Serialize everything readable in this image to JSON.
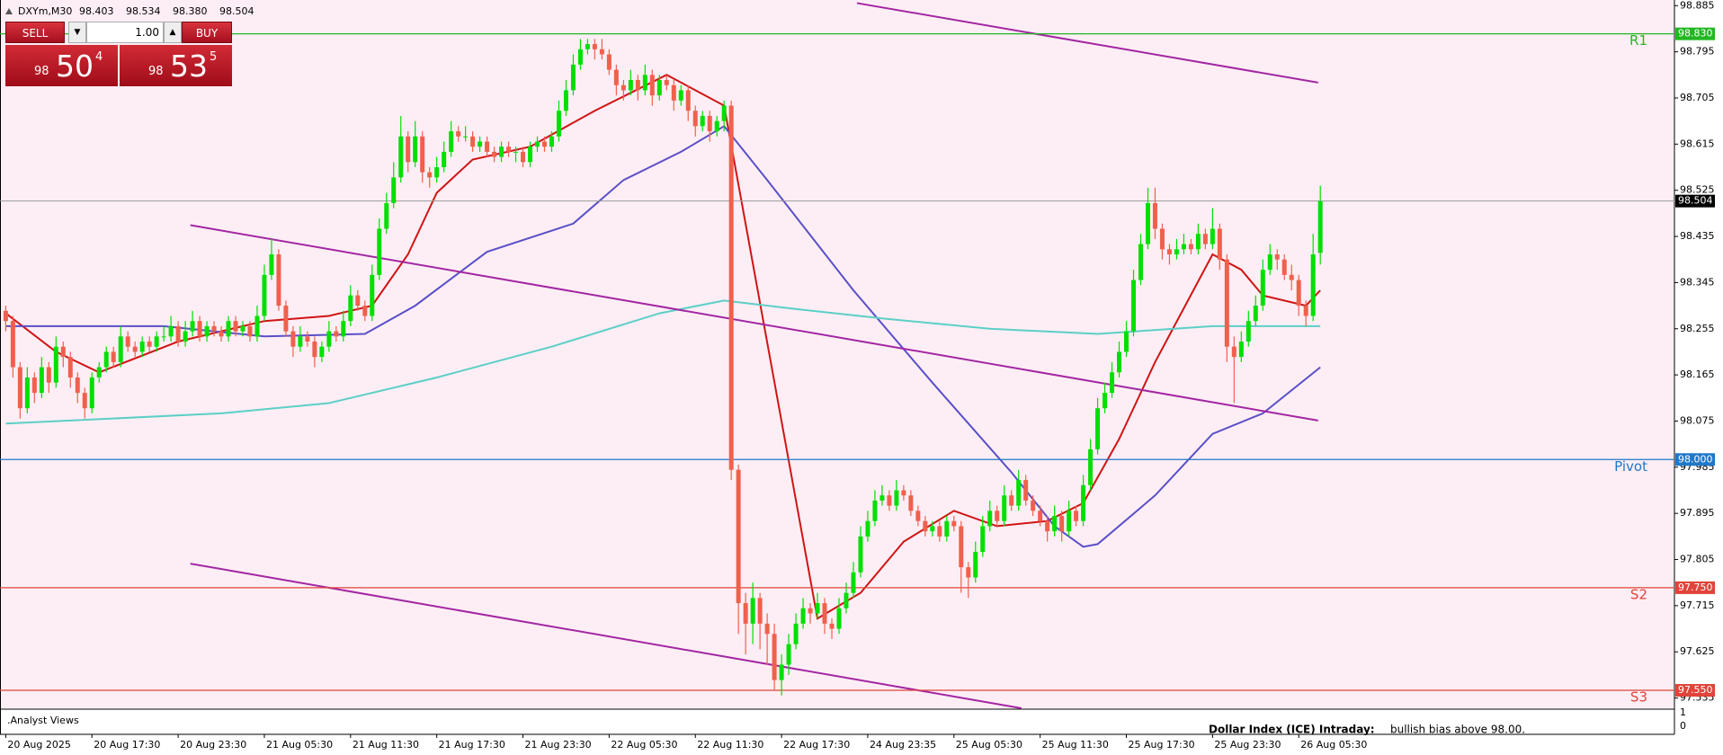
{
  "chart_data": {
    "type": "candlestick",
    "symbol": "DXYm,M30",
    "header_values": [
      "98.403",
      "98.534",
      "98.380",
      "98.504"
    ],
    "colors": {
      "up": "#00e000",
      "down": "#f0604d",
      "background": "#fdeef5",
      "current": "#9a9a9a",
      "current_badge": "#000000"
    },
    "xlim": [
      -0.8,
      232.3
    ],
    "xticks": [
      {
        "value": 0,
        "label": "20 Aug 2025"
      },
      {
        "value": 12,
        "label": "20 Aug 17:30"
      },
      {
        "value": 24,
        "label": "20 Aug 23:30"
      },
      {
        "value": 36,
        "label": "21 Aug 05:30"
      },
      {
        "value": 48,
        "label": "21 Aug 11:30"
      },
      {
        "value": 60,
        "label": "21 Aug 17:30"
      },
      {
        "value": 72,
        "label": "21 Aug 23:30"
      },
      {
        "value": 84,
        "label": "22 Aug 05:30"
      },
      {
        "value": 96,
        "label": "22 Aug 11:30"
      },
      {
        "value": 108,
        "label": "22 Aug 17:30"
      },
      {
        "value": 120,
        "label": "24 Aug 23:35"
      },
      {
        "value": 132,
        "label": "25 Aug 05:30"
      },
      {
        "value": 144,
        "label": "25 Aug 11:30"
      },
      {
        "value": 156,
        "label": "25 Aug 17:30"
      },
      {
        "value": 168,
        "label": "25 Aug 23:30"
      },
      {
        "value": 180,
        "label": "26 Aug 05:30"
      }
    ],
    "ylim": [
      97.515,
      98.896
    ],
    "yticks": [
      98.885,
      98.795,
      98.705,
      98.615,
      98.525,
      98.435,
      98.345,
      98.255,
      98.165,
      98.075,
      97.985,
      97.895,
      97.805,
      97.715,
      97.625,
      97.535
    ],
    "ohlc": [
      [
        98.29,
        98.3,
        98.25,
        98.27
      ],
      [
        98.27,
        98.28,
        98.16,
        98.18
      ],
      [
        98.18,
        98.19,
        98.08,
        98.1
      ],
      [
        98.1,
        98.18,
        98.09,
        98.16
      ],
      [
        98.16,
        98.17,
        98.11,
        98.13
      ],
      [
        98.13,
        98.2,
        98.12,
        98.18
      ],
      [
        98.18,
        98.19,
        98.13,
        98.15
      ],
      [
        98.15,
        98.24,
        98.14,
        98.22
      ],
      [
        98.22,
        98.23,
        98.18,
        98.2
      ],
      [
        98.2,
        98.21,
        98.14,
        98.16
      ],
      [
        98.16,
        98.17,
        98.11,
        98.13
      ],
      [
        98.13,
        98.14,
        98.08,
        98.1
      ],
      [
        98.1,
        98.17,
        98.09,
        98.16
      ],
      [
        98.16,
        98.19,
        98.15,
        98.18
      ],
      [
        98.18,
        98.22,
        98.17,
        98.21
      ],
      [
        98.21,
        98.22,
        98.18,
        98.19
      ],
      [
        98.19,
        98.26,
        98.18,
        98.24
      ],
      [
        98.24,
        98.25,
        98.21,
        98.22
      ],
      [
        98.22,
        98.23,
        98.2,
        98.21
      ],
      [
        98.21,
        98.24,
        98.2,
        98.23
      ],
      [
        98.23,
        98.24,
        98.21,
        98.22
      ],
      [
        98.22,
        98.25,
        98.21,
        98.24
      ],
      [
        98.24,
        98.26,
        98.23,
        98.24
      ],
      [
        98.24,
        98.28,
        98.23,
        98.26
      ],
      [
        98.26,
        98.27,
        98.22,
        98.23
      ],
      [
        98.23,
        98.27,
        98.22,
        98.25
      ],
      [
        98.25,
        98.29,
        98.24,
        98.27
      ],
      [
        98.27,
        98.28,
        98.23,
        98.24
      ],
      [
        98.24,
        98.27,
        98.23,
        98.26
      ],
      [
        98.26,
        98.27,
        98.24,
        98.25
      ],
      [
        98.25,
        98.26,
        98.23,
        98.24
      ],
      [
        98.24,
        98.28,
        98.23,
        98.27
      ],
      [
        98.27,
        98.28,
        98.24,
        98.25
      ],
      [
        98.25,
        98.27,
        98.24,
        98.26
      ],
      [
        98.26,
        98.27,
        98.23,
        98.24
      ],
      [
        98.24,
        98.3,
        98.23,
        98.28
      ],
      [
        98.28,
        98.38,
        98.27,
        98.36
      ],
      [
        98.36,
        98.43,
        98.35,
        98.4
      ],
      [
        98.4,
        98.41,
        98.29,
        98.3
      ],
      [
        98.3,
        98.31,
        98.24,
        98.25
      ],
      [
        98.25,
        98.26,
        98.2,
        98.22
      ],
      [
        98.22,
        98.26,
        98.21,
        98.24
      ],
      [
        98.24,
        98.25,
        98.22,
        98.23
      ],
      [
        98.23,
        98.24,
        98.18,
        98.2
      ],
      [
        98.2,
        98.23,
        98.19,
        98.22
      ],
      [
        98.22,
        98.27,
        98.21,
        98.25
      ],
      [
        98.25,
        98.26,
        98.23,
        98.24
      ],
      [
        98.24,
        98.29,
        98.23,
        98.27
      ],
      [
        98.27,
        98.34,
        98.26,
        98.32
      ],
      [
        98.32,
        98.33,
        98.29,
        98.3
      ],
      [
        98.3,
        98.31,
        98.27,
        98.28
      ],
      [
        98.28,
        98.38,
        98.27,
        98.36
      ],
      [
        98.36,
        98.47,
        98.35,
        98.45
      ],
      [
        98.45,
        98.52,
        98.44,
        98.5
      ],
      [
        98.5,
        98.58,
        98.49,
        98.55
      ],
      [
        98.55,
        98.67,
        98.54,
        98.63
      ],
      [
        98.63,
        98.64,
        98.56,
        98.58
      ],
      [
        98.58,
        98.66,
        98.57,
        98.63
      ],
      [
        98.63,
        98.64,
        98.54,
        98.56
      ],
      [
        98.56,
        98.57,
        98.53,
        98.55
      ],
      [
        98.55,
        98.59,
        98.54,
        98.57
      ],
      [
        98.57,
        98.62,
        98.56,
        98.6
      ],
      [
        98.6,
        98.66,
        98.59,
        98.64
      ],
      [
        98.64,
        98.65,
        98.62,
        98.63
      ],
      [
        98.63,
        98.65,
        98.62,
        98.63
      ],
      [
        98.63,
        98.64,
        98.6,
        98.61
      ],
      [
        98.61,
        98.63,
        98.6,
        98.62
      ],
      [
        98.62,
        98.63,
        98.59,
        98.6
      ],
      [
        98.6,
        98.61,
        98.58,
        98.59
      ],
      [
        98.59,
        98.62,
        98.58,
        98.61
      ],
      [
        98.61,
        98.62,
        98.59,
        98.6
      ],
      [
        98.6,
        98.61,
        98.58,
        98.6
      ],
      [
        98.6,
        98.61,
        98.57,
        98.58
      ],
      [
        98.58,
        98.62,
        98.57,
        98.61
      ],
      [
        98.61,
        98.63,
        98.6,
        98.62
      ],
      [
        98.62,
        98.63,
        98.6,
        98.61
      ],
      [
        98.61,
        98.64,
        98.6,
        98.63
      ],
      [
        98.63,
        98.7,
        98.62,
        98.68
      ],
      [
        98.68,
        98.74,
        98.67,
        98.72
      ],
      [
        98.72,
        98.79,
        98.71,
        98.77
      ],
      [
        98.77,
        98.82,
        98.76,
        98.8
      ],
      [
        98.8,
        98.82,
        98.79,
        98.81
      ],
      [
        98.81,
        98.82,
        98.78,
        98.8
      ],
      [
        98.8,
        98.82,
        98.78,
        98.79
      ],
      [
        98.79,
        98.8,
        98.75,
        98.76
      ],
      [
        98.76,
        98.77,
        98.71,
        98.73
      ],
      [
        98.73,
        98.74,
        98.7,
        98.72
      ],
      [
        98.72,
        98.76,
        98.71,
        98.74
      ],
      [
        98.74,
        98.75,
        98.7,
        98.72
      ],
      [
        98.72,
        98.77,
        98.71,
        98.75
      ],
      [
        98.75,
        98.76,
        98.69,
        98.71
      ],
      [
        98.71,
        98.75,
        98.7,
        98.74
      ],
      [
        98.74,
        98.75,
        98.72,
        98.73
      ],
      [
        98.73,
        98.74,
        98.68,
        98.7
      ],
      [
        98.7,
        98.73,
        98.69,
        98.72
      ],
      [
        98.72,
        98.73,
        98.66,
        98.68
      ],
      [
        98.68,
        98.69,
        98.63,
        98.65
      ],
      [
        98.65,
        98.68,
        98.64,
        98.67
      ],
      [
        98.67,
        98.68,
        98.62,
        98.64
      ],
      [
        98.64,
        98.67,
        98.63,
        98.66
      ],
      [
        98.66,
        98.7,
        98.64,
        98.69
      ],
      [
        98.69,
        98.7,
        97.96,
        97.98
      ],
      [
        97.98,
        97.99,
        97.66,
        97.72
      ],
      [
        97.72,
        97.74,
        97.62,
        97.68
      ],
      [
        97.68,
        97.76,
        97.64,
        97.73
      ],
      [
        97.73,
        97.74,
        97.63,
        97.68
      ],
      [
        97.68,
        97.7,
        97.6,
        97.66
      ],
      [
        97.66,
        97.68,
        97.55,
        97.57
      ],
      [
        97.57,
        97.62,
        97.54,
        97.6
      ],
      [
        97.6,
        97.66,
        97.58,
        97.64
      ],
      [
        97.64,
        97.7,
        97.63,
        97.68
      ],
      [
        97.68,
        97.73,
        97.67,
        97.71
      ],
      [
        97.71,
        97.72,
        97.68,
        97.7
      ],
      [
        97.7,
        97.74,
        97.69,
        97.72
      ],
      [
        97.72,
        97.73,
        97.66,
        97.68
      ],
      [
        97.68,
        97.69,
        97.65,
        97.67
      ],
      [
        97.67,
        97.73,
        97.66,
        97.71
      ],
      [
        97.71,
        97.76,
        97.7,
        97.74
      ],
      [
        97.74,
        97.8,
        97.73,
        97.78
      ],
      [
        97.78,
        97.87,
        97.77,
        97.85
      ],
      [
        97.85,
        97.9,
        97.84,
        97.88
      ],
      [
        97.88,
        97.94,
        97.87,
        97.92
      ],
      [
        97.92,
        97.95,
        97.91,
        97.93
      ],
      [
        97.93,
        97.94,
        97.9,
        97.91
      ],
      [
        97.91,
        97.96,
        97.9,
        97.94
      ],
      [
        97.94,
        97.95,
        97.92,
        97.93
      ],
      [
        97.93,
        97.94,
        97.89,
        97.9
      ],
      [
        97.9,
        97.91,
        97.87,
        97.88
      ],
      [
        97.88,
        97.89,
        97.85,
        97.86
      ],
      [
        97.86,
        97.88,
        97.85,
        97.87
      ],
      [
        97.87,
        97.88,
        97.84,
        97.85
      ],
      [
        97.85,
        97.89,
        97.84,
        97.88
      ],
      [
        97.88,
        97.89,
        97.86,
        97.87
      ],
      [
        97.87,
        97.88,
        97.74,
        97.79
      ],
      [
        97.79,
        97.8,
        97.73,
        97.77
      ],
      [
        97.77,
        97.84,
        97.76,
        97.82
      ],
      [
        97.82,
        97.89,
        97.81,
        97.87
      ],
      [
        97.87,
        97.92,
        97.86,
        97.9
      ],
      [
        97.9,
        97.91,
        97.87,
        97.88
      ],
      [
        97.88,
        97.95,
        97.87,
        97.93
      ],
      [
        97.93,
        97.94,
        97.9,
        97.91
      ],
      [
        97.91,
        97.98,
        97.9,
        97.96
      ],
      [
        97.96,
        97.97,
        97.91,
        97.92
      ],
      [
        97.92,
        97.93,
        97.89,
        97.9
      ],
      [
        97.9,
        97.91,
        97.87,
        97.88
      ],
      [
        97.88,
        97.89,
        97.84,
        97.86
      ],
      [
        97.86,
        97.91,
        97.85,
        97.89
      ],
      [
        97.89,
        97.9,
        97.84,
        97.86
      ],
      [
        97.86,
        97.92,
        97.85,
        97.9
      ],
      [
        97.9,
        97.91,
        97.87,
        97.88
      ],
      [
        97.88,
        97.97,
        97.87,
        97.95
      ],
      [
        97.95,
        98.04,
        97.94,
        98.02
      ],
      [
        98.02,
        98.12,
        98.01,
        98.1
      ],
      [
        98.1,
        98.15,
        98.09,
        98.13
      ],
      [
        98.13,
        98.19,
        98.12,
        98.17
      ],
      [
        98.17,
        98.23,
        98.16,
        98.21
      ],
      [
        98.21,
        98.27,
        98.2,
        98.25
      ],
      [
        98.25,
        98.37,
        98.24,
        98.35
      ],
      [
        98.35,
        98.44,
        98.34,
        98.42
      ],
      [
        98.42,
        98.53,
        98.41,
        98.5
      ],
      [
        98.5,
        98.53,
        98.43,
        98.45
      ],
      [
        98.45,
        98.46,
        98.39,
        98.41
      ],
      [
        98.41,
        98.42,
        98.38,
        98.4
      ],
      [
        98.4,
        98.43,
        98.39,
        98.41
      ],
      [
        98.41,
        98.44,
        98.4,
        98.42
      ],
      [
        98.42,
        98.43,
        98.4,
        98.41
      ],
      [
        98.41,
        98.46,
        98.4,
        98.44
      ],
      [
        98.44,
        98.45,
        98.41,
        98.42
      ],
      [
        98.42,
        98.49,
        98.41,
        98.45
      ],
      [
        98.45,
        98.46,
        98.37,
        98.39
      ],
      [
        98.39,
        98.4,
        98.19,
        98.22
      ],
      [
        98.22,
        98.24,
        98.11,
        98.2
      ],
      [
        98.2,
        98.25,
        98.19,
        98.23
      ],
      [
        98.23,
        98.29,
        98.22,
        98.27
      ],
      [
        98.27,
        98.32,
        98.26,
        98.3
      ],
      [
        98.3,
        98.39,
        98.29,
        98.37
      ],
      [
        98.37,
        98.42,
        98.36,
        98.4
      ],
      [
        98.4,
        98.41,
        98.37,
        98.39
      ],
      [
        98.39,
        98.4,
        98.35,
        98.36
      ],
      [
        98.36,
        98.38,
        98.33,
        98.35
      ],
      [
        98.35,
        98.36,
        98.28,
        98.3
      ],
      [
        98.3,
        98.31,
        98.26,
        98.28
      ],
      [
        98.28,
        98.44,
        98.27,
        98.4
      ],
      [
        98.403,
        98.534,
        98.38,
        98.504
      ]
    ],
    "moving_averages": [
      {
        "color": "#d01414",
        "x": [
          0,
          7,
          13,
          24,
          36,
          45,
          51,
          56,
          60,
          65,
          73,
          82,
          92,
          100,
          113,
          119,
          125,
          132,
          138,
          145,
          150,
          155,
          160,
          168,
          172,
          175,
          181,
          183
        ],
        "values": [
          98.285,
          98.21,
          98.17,
          98.23,
          98.27,
          98.28,
          98.3,
          98.4,
          98.52,
          98.585,
          98.61,
          98.68,
          98.75,
          98.69,
          97.69,
          97.74,
          97.84,
          97.9,
          97.87,
          97.88,
          97.915,
          98.04,
          98.19,
          98.4,
          98.37,
          98.32,
          98.3,
          98.33
        ]
      },
      {
        "color": "#5a4fc8",
        "x": [
          0,
          8,
          22,
          36,
          50,
          57,
          67,
          79,
          86,
          94,
          100,
          106,
          118,
          129,
          140,
          146,
          150,
          152,
          160,
          168,
          175,
          183
        ],
        "values": [
          98.26,
          98.26,
          98.26,
          98.24,
          98.245,
          98.3,
          98.405,
          98.46,
          98.545,
          98.6,
          98.65,
          98.545,
          98.33,
          98.15,
          97.975,
          97.87,
          97.83,
          97.835,
          97.93,
          98.05,
          98.09,
          98.18
        ]
      },
      {
        "color": "#5ccfc6",
        "x": [
          0,
          30,
          45,
          60,
          76,
          91,
          100,
          109,
          122,
          137,
          152,
          168,
          183
        ],
        "values": [
          98.07,
          98.09,
          98.11,
          98.16,
          98.22,
          98.285,
          98.31,
          98.295,
          98.275,
          98.255,
          98.245,
          98.26,
          98.26
        ]
      }
    ],
    "trendlines": [
      {
        "color": "#a326a3",
        "x": [
          118.5,
          182.7
        ],
        "values": [
          98.89,
          98.735
        ]
      },
      {
        "color": "#a326a3",
        "x": [
          25.7,
          182.7
        ],
        "values": [
          98.457,
          98.076
        ]
      },
      {
        "color": "#a326a3",
        "x": [
          25.7,
          141.4
        ],
        "values": [
          97.797,
          97.515
        ]
      }
    ],
    "levels": [
      {
        "name": "R1",
        "value": 98.83,
        "label": "98.830",
        "color": "#22b722"
      },
      {
        "name": "Pivot",
        "value": 98,
        "label": "98.000",
        "color": "#1f78c8"
      },
      {
        "name": "S2",
        "value": 97.75,
        "label": "97.750",
        "color": "#e0443a"
      },
      {
        "name": "S3",
        "value": 97.55,
        "label": "97.550",
        "color": "#e0443a"
      }
    ]
  },
  "trade_panel": {
    "sell": "SELL",
    "buy": "BUY",
    "lot": "1.00",
    "bid": [
      "98",
      "50",
      "4"
    ],
    "ask": [
      "98",
      "53",
      "5"
    ]
  },
  "indicator_window": {
    "name": ".Analyst Views",
    "headline": "Dollar Index (ICE) Intraday:",
    "text": "bullish bias above 98.00.",
    "ylim": [
      0,
      1
    ],
    "yticks": [
      1,
      0
    ]
  }
}
